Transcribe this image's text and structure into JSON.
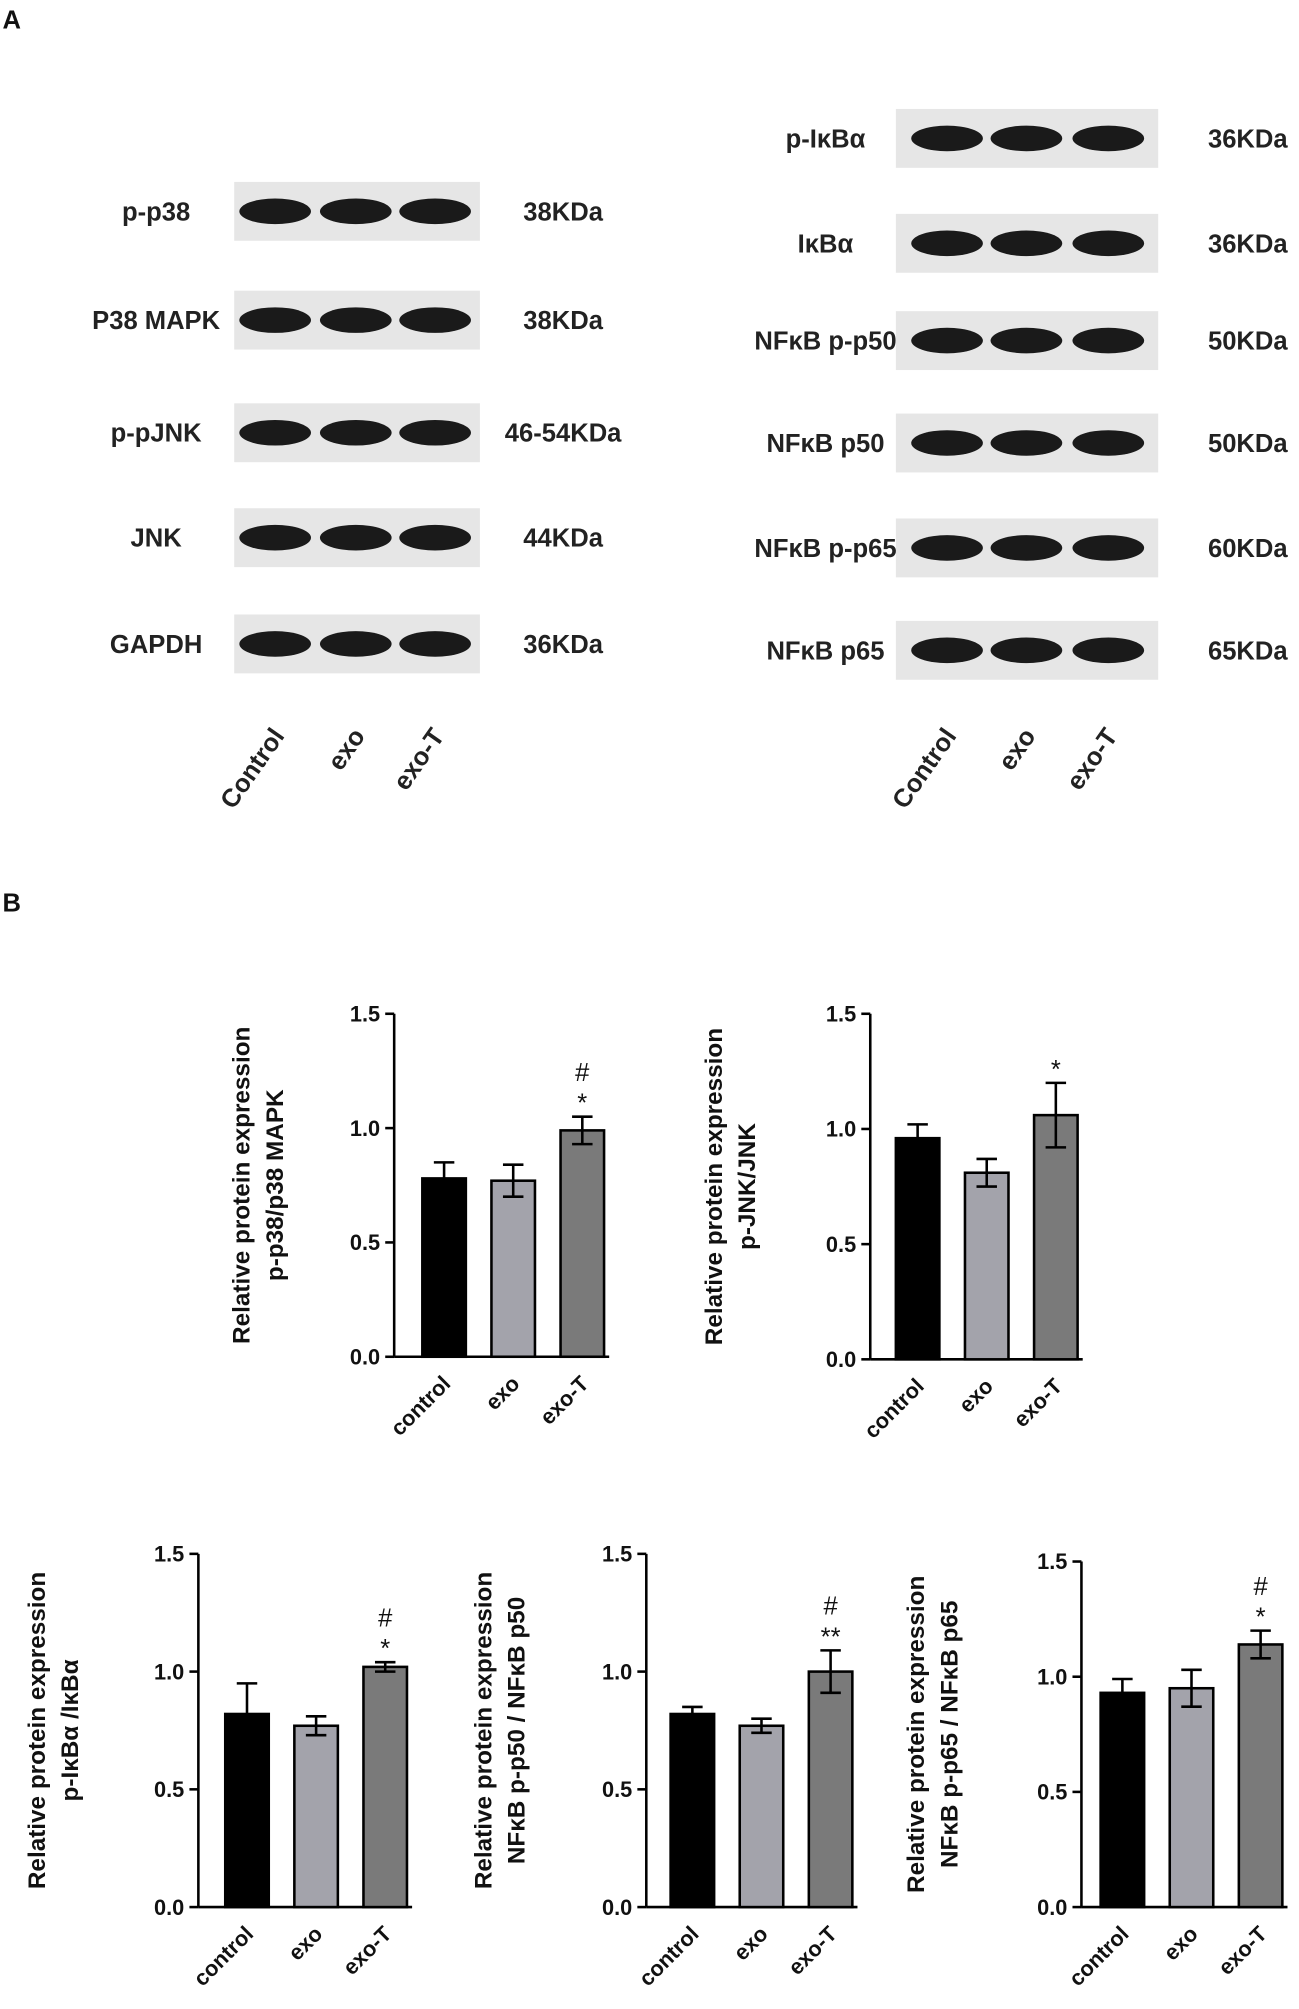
{
  "panels": {
    "a": "A",
    "b": "B"
  },
  "blots": [
    {
      "lanes": [
        "Control",
        "exo",
        "exo-T"
      ],
      "rows": [
        {
          "label": "p-p38",
          "size": "38KDa"
        },
        {
          "label": "P38 MAPK",
          "size": "38KDa"
        },
        {
          "label": "p-pJNK",
          "size": "46-54KDa"
        },
        {
          "label": "JNK",
          "size": "44KDa"
        },
        {
          "label": "GAPDH",
          "size": "36KDa"
        }
      ]
    },
    {
      "lanes": [
        "Control",
        "exo",
        "exo-T"
      ],
      "rows": [
        {
          "label": "p-IκBα",
          "size": "36KDa"
        },
        {
          "label": "IκBα",
          "size": "36KDa"
        },
        {
          "label": "NFκB p-p50",
          "size": "50KDa"
        },
        {
          "label": "NFκB p50",
          "size": "50KDa"
        },
        {
          "label": "NFκB p-p65",
          "size": "60KDa"
        },
        {
          "label": "NFκB p65",
          "size": "65KDa"
        }
      ]
    }
  ],
  "chart_data": [
    {
      "type": "bar",
      "y_label": [
        "Relative protein expression",
        "p-p38/p38 MAPK"
      ],
      "categories": [
        "control",
        "exo",
        "exo-T"
      ],
      "values": [
        0.78,
        0.77,
        0.99
      ],
      "errors": [
        0.07,
        0.07,
        0.06
      ],
      "colors": [
        "#000000",
        "#a3a3ab",
        "#7a7a7a"
      ],
      "annotations": [
        "#",
        "*"
      ],
      "ylim": [
        0,
        1.5
      ],
      "yticks": [
        {
          "value": 0,
          "label": "0.0"
        },
        0.5,
        {
          "value": 1,
          "label": "1.0"
        },
        1.5
      ]
    },
    {
      "type": "bar",
      "y_label": [
        "Relative protein expression",
        "p-JNK/JNK"
      ],
      "categories": [
        "control",
        "exo",
        "exo-T"
      ],
      "values": [
        0.96,
        0.81,
        1.06
      ],
      "errors": [
        0.06,
        0.06,
        0.14
      ],
      "colors": [
        "#000000",
        "#a3a3ab",
        "#7a7a7a"
      ],
      "annotations": [
        "*"
      ],
      "ylim": [
        0,
        1.5
      ],
      "yticks": [
        {
          "value": 0,
          "label": "0.0"
        },
        0.5,
        {
          "value": 1,
          "label": "1.0"
        },
        1.5
      ]
    },
    {
      "type": "bar",
      "y_label": [
        "Relative protein expression",
        "p-IκBα /IκBα"
      ],
      "categories": [
        "control",
        "exo",
        "exo-T"
      ],
      "values": [
        0.82,
        0.77,
        1.02
      ],
      "errors": [
        0.13,
        0.04,
        0.02
      ],
      "colors": [
        "#000000",
        "#a3a3ab",
        "#7a7a7a"
      ],
      "annotations": [
        "#",
        "*"
      ],
      "ylim": [
        0,
        1.5
      ],
      "yticks": [
        {
          "value": 0,
          "label": "0.0"
        },
        0.5,
        {
          "value": 1,
          "label": "1.0"
        },
        1.5
      ]
    },
    {
      "type": "bar",
      "y_label": [
        "Relative protein expression",
        "NFκB p-p50 / NFκB p50"
      ],
      "categories": [
        "control",
        "exo",
        "exo-T"
      ],
      "values": [
        0.82,
        0.77,
        1.0
      ],
      "errors": [
        0.03,
        0.03,
        0.09
      ],
      "colors": [
        "#000000",
        "#a3a3ab",
        "#7a7a7a"
      ],
      "annotations": [
        "#",
        "**"
      ],
      "ylim": [
        0,
        1.5
      ],
      "yticks": [
        {
          "value": 0,
          "label": "0.0"
        },
        0.5,
        {
          "value": 1,
          "label": "1.0"
        },
        1.5
      ]
    },
    {
      "type": "bar",
      "y_label": [
        "Relative protein expression",
        "NFκB p-p65 / NFκB p65"
      ],
      "categories": [
        "control",
        "exo",
        "exo-T"
      ],
      "values": [
        0.93,
        0.95,
        1.14
      ],
      "errors": [
        0.06,
        0.08,
        0.06
      ],
      "colors": [
        "#000000",
        "#a3a3ab",
        "#7a7a7a"
      ],
      "annotations": [
        "#",
        "*"
      ],
      "ylim": [
        0,
        1.5
      ],
      "yticks": [
        {
          "value": 0,
          "label": "0.0"
        },
        0.5,
        {
          "value": 1,
          "label": "1.0"
        },
        1.5
      ]
    }
  ]
}
